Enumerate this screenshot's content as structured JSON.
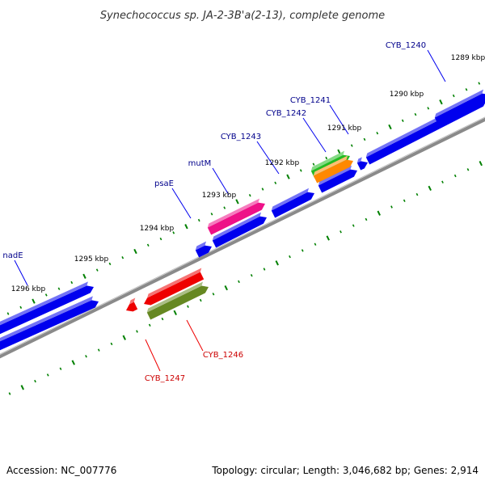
{
  "title": "Synechococcus sp. JA-2-3B'a(2-13), complete genome",
  "accession": "Accession: NC_007776",
  "summary": "Topology: circular; Length: 3,046,682 bp; Genes: 2,914",
  "colors": {
    "forward_gene": "#0000ee",
    "reverse_gene": "#ee0000",
    "backbone": "#808080",
    "ticks": "#008000",
    "label_forward": "#00008b",
    "label_reverse": "#cc0000"
  },
  "scale_labels": [
    "1289 kbp",
    "1290 kbp",
    "1291 kbp",
    "1292 kbp",
    "1293 kbp",
    "1294 kbp",
    "1295 kbp",
    "1296 kbp"
  ],
  "gene_labels": [
    {
      "text": "CYB_1240",
      "strand": "forward"
    },
    {
      "text": "CYB_1241",
      "strand": "forward"
    },
    {
      "text": "CYB_1242",
      "strand": "forward"
    },
    {
      "text": "CYB_1243",
      "strand": "forward"
    },
    {
      "text": "mutM",
      "strand": "forward"
    },
    {
      "text": "psaE",
      "strand": "forward"
    },
    {
      "text": "nadE",
      "strand": "forward"
    },
    {
      "text": "CYB_1246",
      "strand": "reverse"
    },
    {
      "text": "CYB_1247",
      "strand": "reverse"
    }
  ],
  "genes": [
    {
      "name": "forward-gene-1",
      "strand": "forward",
      "color": "#0000ee"
    },
    {
      "name": "forward-gene-2",
      "strand": "forward",
      "color": "#0000ee"
    },
    {
      "name": "forward-gene-3",
      "strand": "forward",
      "color": "#0000ee"
    },
    {
      "name": "forward-gene-4",
      "strand": "forward",
      "color": "#0000ee"
    },
    {
      "name": "forward-gene-5",
      "strand": "forward",
      "color": "#0000ee"
    },
    {
      "name": "forward-gene-6",
      "strand": "forward",
      "color": "#0000ee"
    },
    {
      "name": "forward-gene-7",
      "strand": "forward",
      "color": "#0000ee"
    },
    {
      "name": "forward-gene-8",
      "strand": "forward",
      "color": "#0000ee"
    },
    {
      "name": "forward-gene-9",
      "strand": "forward",
      "color": "#0000ee"
    },
    {
      "name": "gene-green",
      "strand": "forward",
      "color": "#22bb22"
    },
    {
      "name": "gene-orange",
      "strand": "forward",
      "color": "#ff8800"
    },
    {
      "name": "gene-pink",
      "strand": "forward",
      "color": "#ee1188"
    },
    {
      "name": "gene-red-large",
      "strand": "reverse",
      "color": "#ee0000"
    },
    {
      "name": "gene-red-small",
      "strand": "reverse",
      "color": "#ee0000"
    },
    {
      "name": "gene-olive",
      "strand": "reverse",
      "color": "#668822"
    }
  ]
}
